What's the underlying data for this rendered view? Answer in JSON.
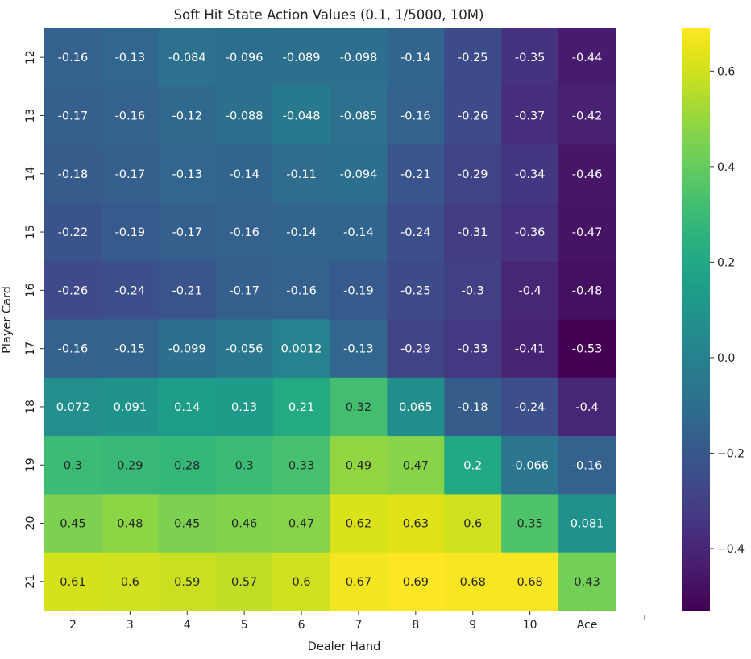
{
  "chart_data": {
    "type": "heatmap",
    "title": "Soft Hit State Action Values (0.1, 1/5000, 10M)",
    "xlabel": "Dealer Hand",
    "ylabel": "Player Card",
    "x_categories": [
      "2",
      "3",
      "4",
      "5",
      "6",
      "7",
      "8",
      "9",
      "10",
      "Ace"
    ],
    "y_categories": [
      "12",
      "13",
      "14",
      "15",
      "16",
      "17",
      "18",
      "19",
      "20",
      "21"
    ],
    "cell_labels": [
      [
        "-0.16",
        "-0.13",
        "-0.084",
        "-0.096",
        "-0.089",
        "-0.098",
        "-0.14",
        "-0.25",
        "-0.35",
        "-0.44"
      ],
      [
        "-0.17",
        "-0.16",
        "-0.12",
        "-0.088",
        "-0.048",
        "-0.085",
        "-0.16",
        "-0.26",
        "-0.37",
        "-0.42"
      ],
      [
        "-0.18",
        "-0.17",
        "-0.13",
        "-0.14",
        "-0.11",
        "-0.094",
        "-0.21",
        "-0.29",
        "-0.34",
        "-0.46"
      ],
      [
        "-0.22",
        "-0.19",
        "-0.17",
        "-0.16",
        "-0.14",
        "-0.14",
        "-0.24",
        "-0.31",
        "-0.36",
        "-0.47"
      ],
      [
        "-0.26",
        "-0.24",
        "-0.21",
        "-0.17",
        "-0.16",
        "-0.19",
        "-0.25",
        "-0.3",
        "-0.4",
        "-0.48"
      ],
      [
        "-0.16",
        "-0.15",
        "-0.099",
        "-0.056",
        "0.0012",
        "-0.13",
        "-0.29",
        "-0.33",
        "-0.41",
        "-0.53"
      ],
      [
        "0.072",
        "0.091",
        "0.14",
        "0.13",
        "0.21",
        "0.32",
        "0.065",
        "-0.18",
        "-0.24",
        "-0.4"
      ],
      [
        "0.3",
        "0.29",
        "0.28",
        "0.3",
        "0.33",
        "0.49",
        "0.47",
        "0.2",
        "-0.066",
        "-0.16"
      ],
      [
        "0.45",
        "0.48",
        "0.45",
        "0.46",
        "0.47",
        "0.62",
        "0.63",
        "0.6",
        "0.35",
        "0.081"
      ],
      [
        "0.61",
        "0.6",
        "0.59",
        "0.57",
        "0.6",
        "0.67",
        "0.69",
        "0.68",
        "0.68",
        "0.43"
      ]
    ],
    "values": [
      [
        -0.16,
        -0.13,
        -0.084,
        -0.096,
        -0.089,
        -0.098,
        -0.14,
        -0.25,
        -0.35,
        -0.44
      ],
      [
        -0.17,
        -0.16,
        -0.12,
        -0.088,
        -0.048,
        -0.085,
        -0.16,
        -0.26,
        -0.37,
        -0.42
      ],
      [
        -0.18,
        -0.17,
        -0.13,
        -0.14,
        -0.11,
        -0.094,
        -0.21,
        -0.29,
        -0.34,
        -0.46
      ],
      [
        -0.22,
        -0.19,
        -0.17,
        -0.16,
        -0.14,
        -0.14,
        -0.24,
        -0.31,
        -0.36,
        -0.47
      ],
      [
        -0.26,
        -0.24,
        -0.21,
        -0.17,
        -0.16,
        -0.19,
        -0.25,
        -0.3,
        -0.4,
        -0.48
      ],
      [
        -0.16,
        -0.15,
        -0.099,
        -0.056,
        0.0012,
        -0.13,
        -0.29,
        -0.33,
        -0.41,
        -0.53
      ],
      [
        0.072,
        0.091,
        0.14,
        0.13,
        0.21,
        0.32,
        0.065,
        -0.18,
        -0.24,
        -0.4
      ],
      [
        0.3,
        0.29,
        0.28,
        0.3,
        0.33,
        0.49,
        0.47,
        0.2,
        -0.066,
        -0.16
      ],
      [
        0.45,
        0.48,
        0.45,
        0.46,
        0.47,
        0.62,
        0.63,
        0.6,
        0.35,
        0.081
      ],
      [
        0.61,
        0.6,
        0.59,
        0.57,
        0.6,
        0.67,
        0.69,
        0.68,
        0.68,
        0.43
      ]
    ],
    "colormap": "viridis",
    "vmin": -0.53,
    "vmax": 0.69,
    "colorbar": {
      "ticks": [
        -0.4,
        -0.2,
        0.0,
        0.2,
        0.4,
        0.6
      ],
      "tick_labels": [
        "−0.4",
        "−0.2",
        "0.0",
        "0.2",
        "0.4",
        "0.6"
      ]
    }
  }
}
